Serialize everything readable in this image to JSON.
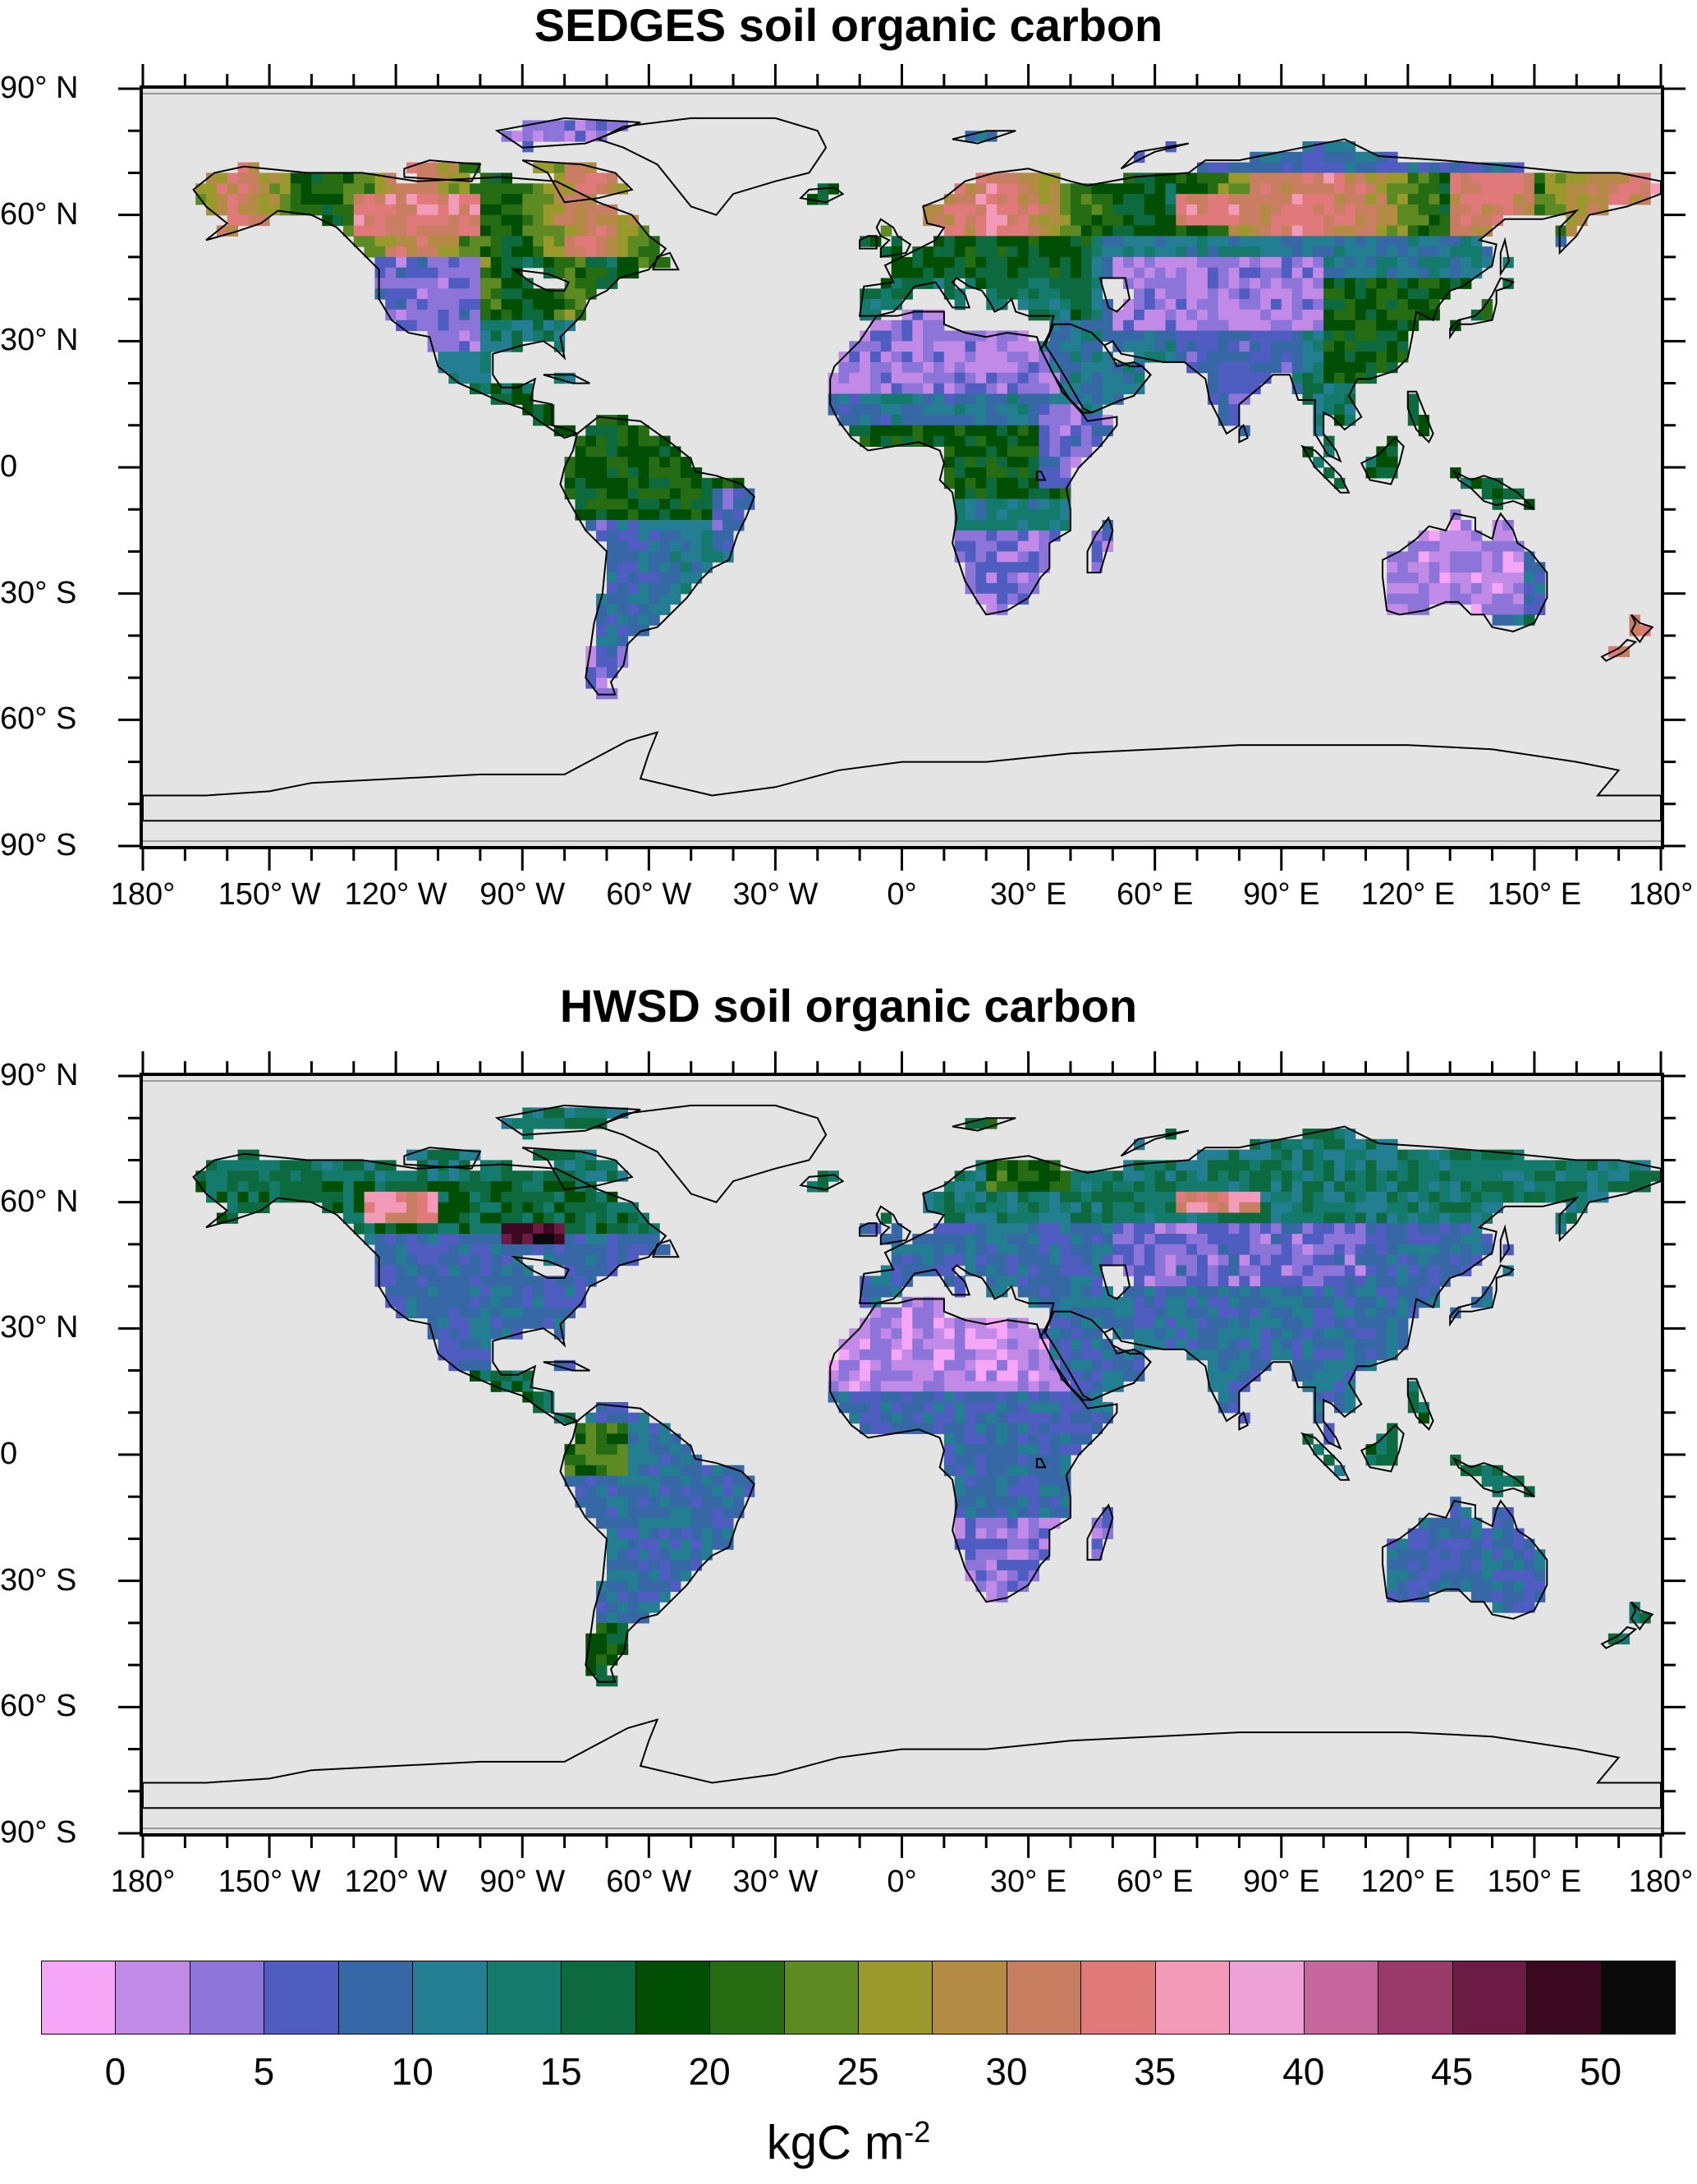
{
  "panels": [
    {
      "title": "SEDGES soil organic carbon",
      "variant": "sedges"
    },
    {
      "title": "HWSD soil organic carbon",
      "variant": "hwsd"
    }
  ],
  "lat_labels": [
    "90° N",
    "60° N",
    "30° N",
    "0",
    "30° S",
    "60° S",
    "90° S"
  ],
  "lon_labels": [
    "180°",
    "150° W",
    "120° W",
    "90° W",
    "60° W",
    "30° W",
    "0°",
    "30° E",
    "60° E",
    "90° E",
    "120° E",
    "150° E",
    "180°"
  ],
  "colorbar": {
    "unit_main": "kgC m",
    "unit_exp": "-2",
    "tick_labels": [
      "0",
      "5",
      "10",
      "15",
      "20",
      "25",
      "30",
      "35",
      "40",
      "45",
      "50"
    ],
    "colors": [
      "#f6a6f6",
      "#c08ae6",
      "#8c74d8",
      "#4f5cc0",
      "#3668a6",
      "#237e92",
      "#147a6c",
      "#0d6a3e",
      "#014e05",
      "#256c12",
      "#5e8a24",
      "#9a9a2c",
      "#b48b44",
      "#c87e60",
      "#e07a7a",
      "#f29ab8",
      "#eca2d6",
      "#c6669e",
      "#9a3a6a",
      "#6c1c44",
      "#3c0a20",
      "#0a0a0a"
    ],
    "ticks": [
      0,
      5,
      10,
      15,
      20,
      25,
      30,
      35,
      40,
      45,
      50
    ],
    "range": [
      -2.5,
      52.5
    ]
  },
  "map_style": {
    "ocean": "#e4e4e4",
    "coast": "#000000"
  }
}
